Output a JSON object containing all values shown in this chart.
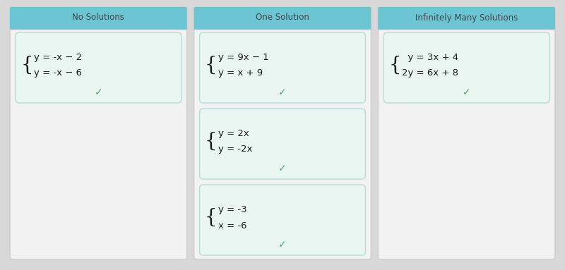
{
  "bg_color": "#d8d8d8",
  "col_header_bg": "#6bc5d2",
  "col_header_text_color": "#444444",
  "card_bg": "#eaf6f2",
  "card_border": "#b8dcd6",
  "checkmark_color": "#4aaa6a",
  "outer_col_bg": "#f2f2f2",
  "outer_col_border": "#cccccc",
  "columns": [
    {
      "title": "No Solutions",
      "col_idx": 0,
      "cards": [
        {
          "line1": "y = -x − 2",
          "line2": "y = -x − 6"
        }
      ]
    },
    {
      "title": "One Solution",
      "col_idx": 1,
      "cards": [
        {
          "line1": "y = 9x − 1",
          "line2": "y = x + 9"
        },
        {
          "line1": "y = 2x",
          "line2": "y = -2x"
        },
        {
          "line1": "y = -3",
          "line2": "x = -6"
        }
      ]
    },
    {
      "title": "Infinitely Many Solutions",
      "col_idx": 2,
      "cards": [
        {
          "line1": "  y = 3x + 4",
          "line2": "2y = 6x + 8"
        }
      ]
    }
  ],
  "fig_width": 8.0,
  "fig_height": 3.83,
  "dpi": 100
}
